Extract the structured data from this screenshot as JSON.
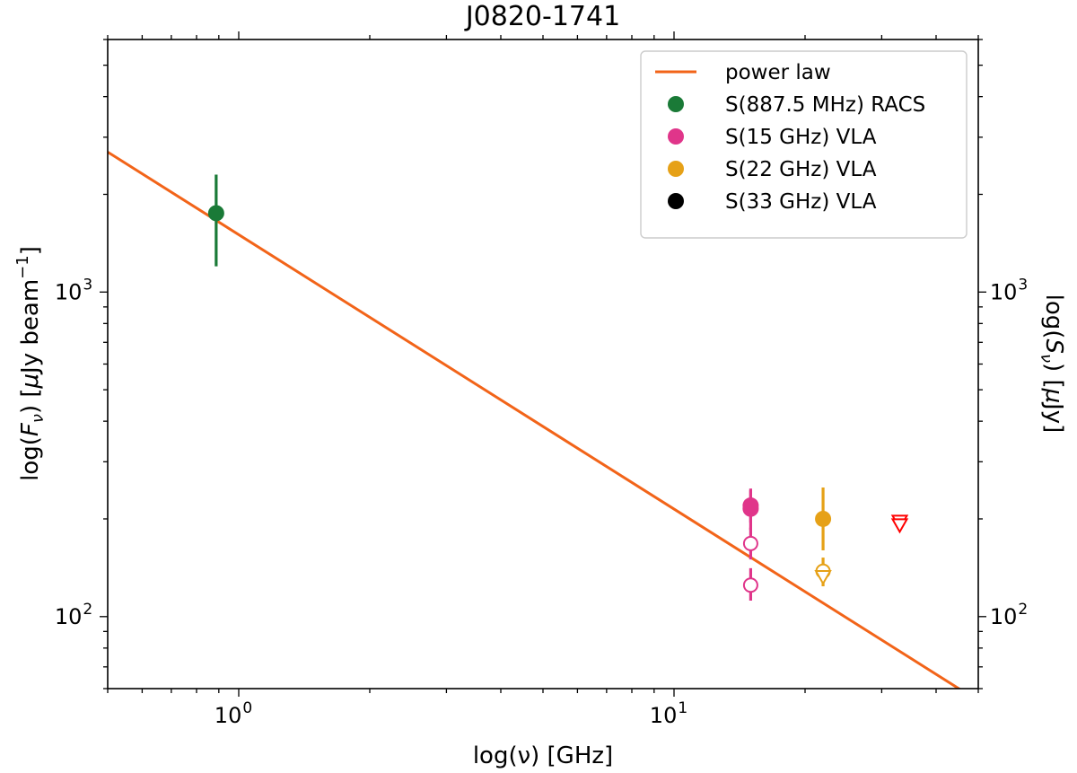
{
  "chart_data": {
    "type": "scatter",
    "title": "J0820-1741",
    "xlabel": "log(ν) [GHz]",
    "ylabel_left": "log(F_ν) [μJy beam⁻¹]",
    "ylabel_right": "log(S_ν) [μJy]",
    "xscale": "log",
    "yscale": "log",
    "xlim": [
      0.5,
      50
    ],
    "ylim": [
      60,
      6000
    ],
    "x_ticks": [
      {
        "value": 1,
        "base": "10",
        "exp": "0"
      },
      {
        "value": 10,
        "base": "10",
        "exp": "1"
      }
    ],
    "y_ticks": [
      {
        "value": 100,
        "base": "10",
        "exp": "2"
      },
      {
        "value": 1000,
        "base": "10",
        "exp": "3"
      }
    ],
    "power_law": {
      "name": "power law",
      "color": "#f26419",
      "x": [
        0.5,
        50
      ],
      "y": [
        2700,
        55
      ]
    },
    "series": [
      {
        "name": "S(887.5 MHz) RACS",
        "color": "#1a7a37",
        "points": [
          {
            "x": 0.8875,
            "y": 1750,
            "err_low": 1200,
            "err_high": 2300
          }
        ]
      },
      {
        "name": "S(15 GHz) VLA",
        "color": "#e0358a",
        "points": [
          {
            "x": 15,
            "y": 215,
            "err_low": 185,
            "err_high": 248
          },
          {
            "x": 15,
            "y": 220,
            "err_low": 195,
            "err_high": 245
          }
        ]
      },
      {
        "name": "S(22 GHz) VLA",
        "color": "#e6a117",
        "points": [
          {
            "x": 22,
            "y": 200,
            "err_low": 160,
            "err_high": 250
          }
        ]
      },
      {
        "name": "S(33 GHz) VLA",
        "color": "#000000",
        "points": []
      }
    ],
    "open_points": [
      {
        "x": 15,
        "y": 168,
        "err_low": 150,
        "err_high": 188,
        "color": "#e0358a"
      },
      {
        "x": 15,
        "y": 125,
        "err_low": 112,
        "err_high": 141,
        "color": "#e0358a"
      },
      {
        "x": 22,
        "y": 138,
        "err_low": 124,
        "err_high": 152,
        "color": "#e6a117"
      }
    ],
    "upper_limits": [
      {
        "x": 22,
        "y": 133,
        "color": "#e6a117"
      },
      {
        "x": 33,
        "y": 197,
        "color": "#ff0000"
      },
      {
        "x": 33,
        "y": 192,
        "color": "#ff0000"
      }
    ],
    "legend": "top-right"
  }
}
